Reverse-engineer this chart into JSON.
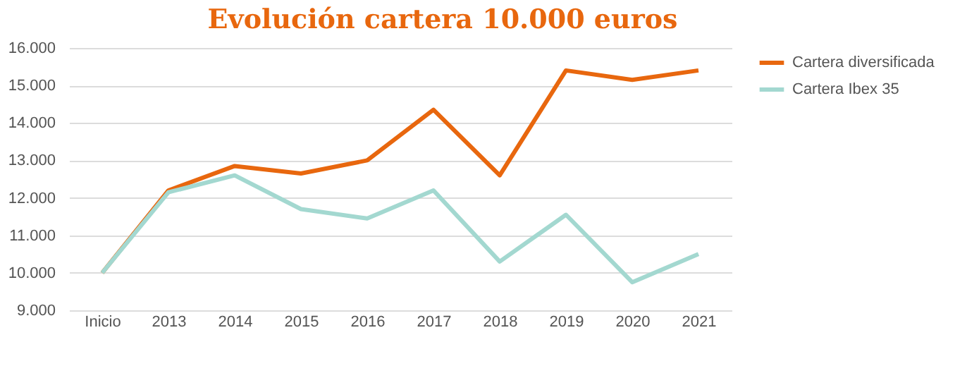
{
  "chart_data": {
    "type": "line",
    "title": "Evolución cartera 10.000 euros",
    "categories": [
      "Inicio",
      "2013",
      "2014",
      "2015",
      "2016",
      "2017",
      "2018",
      "2019",
      "2020",
      "2021"
    ],
    "series": [
      {
        "name": "Cartera diversificada",
        "color": "#e8670e",
        "values": [
          10000,
          12200,
          12850,
          12650,
          13000,
          14350,
          12600,
          15400,
          15150,
          15400
        ]
      },
      {
        "name": "Cartera Ibex 35",
        "color": "#a3d8d0",
        "values": [
          10000,
          12150,
          12600,
          11700,
          11450,
          12200,
          10300,
          11550,
          9750,
          10500
        ]
      }
    ],
    "ylim": [
      9000,
      16000
    ],
    "yticks": [
      {
        "value": 9000,
        "label": "9.000"
      },
      {
        "value": 10000,
        "label": "10.000"
      },
      {
        "value": 11000,
        "label": "11.000"
      },
      {
        "value": 12000,
        "label": "12.000"
      },
      {
        "value": 13000,
        "label": "13.000"
      },
      {
        "value": 14000,
        "label": "14.000"
      },
      {
        "value": 15000,
        "label": "15.000"
      },
      {
        "value": 16000,
        "label": "16.000"
      }
    ],
    "grid": "y",
    "legend": "right",
    "line_style": "solid"
  }
}
